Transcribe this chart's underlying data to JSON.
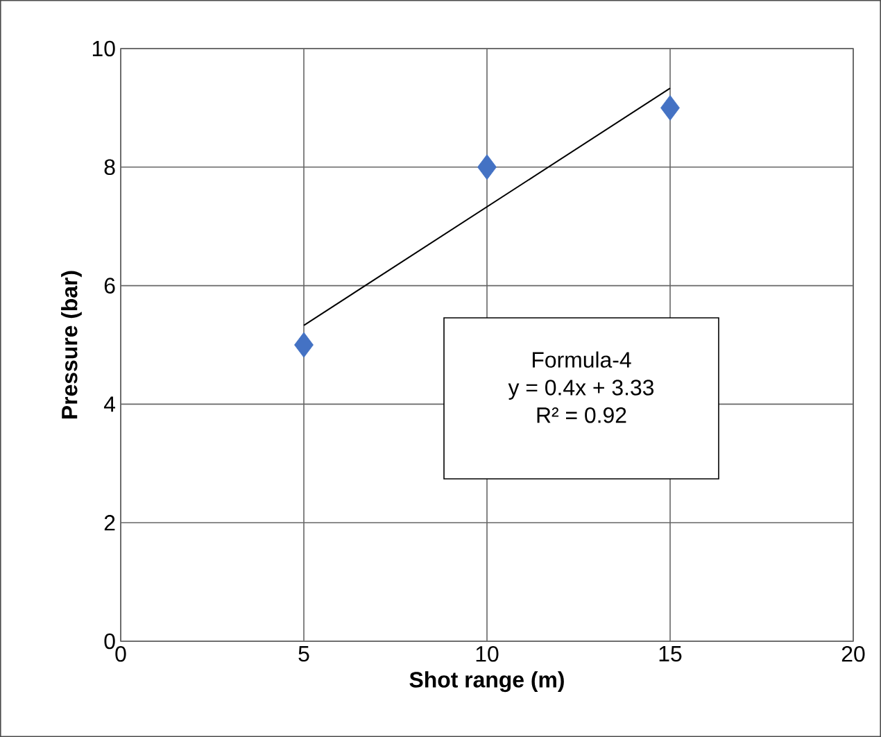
{
  "chart_data": {
    "type": "scatter",
    "xlabel": "Shot range (m)",
    "ylabel": "Pressure (bar)",
    "xlim": [
      0,
      20
    ],
    "ylim": [
      0,
      10
    ],
    "xticks": [
      0,
      5,
      10,
      15,
      20
    ],
    "yticks": [
      0,
      2,
      4,
      6,
      8,
      10
    ],
    "grid": true,
    "marker": "diamond",
    "series": [
      {
        "type": "scatter",
        "x": [
          5,
          10,
          15
        ],
        "values": [
          5,
          8,
          9
        ],
        "color": "#4472c4"
      },
      {
        "type": "line",
        "x": [
          5,
          15
        ],
        "values": [
          5.33,
          9.33
        ],
        "color": "#000000",
        "marker": "none"
      }
    ],
    "annotations": [
      "Formula-4",
      "y = 0.4x + 3.33",
      "R² = 0.92"
    ]
  }
}
